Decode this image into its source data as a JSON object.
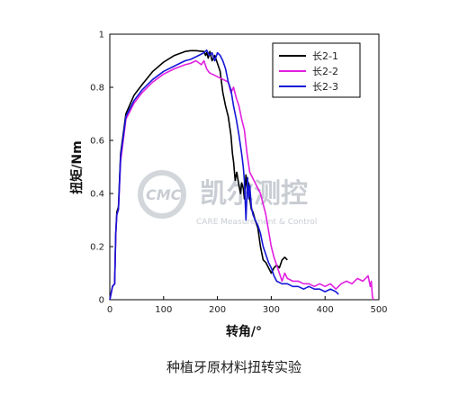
{
  "caption": "种植牙原材料扭转实验",
  "watermark": {
    "logo_text": "CMC",
    "brand_cn": "凯尔测控",
    "brand_en": "CARE Measurement & Control"
  },
  "chart_data": {
    "type": "line",
    "xlabel": "转角/°",
    "ylabel": "扭矩/Nm",
    "xlim": [
      0,
      500
    ],
    "ylim": [
      0,
      1
    ],
    "xticks": [
      0,
      100,
      200,
      300,
      400,
      500
    ],
    "xtick_labels": [
      "0",
      "100",
      "200",
      "300",
      "400",
      "500"
    ],
    "yticks": [
      0,
      0.2,
      0.4,
      0.6,
      0.8,
      1
    ],
    "ytick_labels": [
      "0",
      "0.2",
      "0.4",
      "0.6",
      "0.8",
      "1"
    ],
    "grid": false,
    "legend_position": "top-right",
    "series": [
      {
        "name": "长2-1",
        "color": "#000000",
        "x": [
          0,
          5,
          9,
          11,
          13,
          16,
          20,
          30,
          45,
          60,
          80,
          100,
          120,
          140,
          150,
          160,
          170,
          175,
          178,
          180,
          183,
          186,
          190,
          195,
          200,
          205,
          210,
          215,
          220,
          225,
          228,
          230,
          233,
          236,
          240,
          243,
          245,
          248,
          250,
          253,
          256,
          258,
          260,
          263,
          266,
          270,
          275,
          280,
          285,
          290,
          295,
          300,
          305,
          310,
          315,
          320,
          325,
          330
        ],
        "y": [
          0.0,
          0.05,
          0.06,
          0.25,
          0.33,
          0.35,
          0.55,
          0.7,
          0.77,
          0.81,
          0.86,
          0.895,
          0.92,
          0.935,
          0.938,
          0.938,
          0.936,
          0.935,
          0.92,
          0.93,
          0.91,
          0.935,
          0.9,
          0.92,
          0.89,
          0.86,
          0.78,
          0.73,
          0.69,
          0.62,
          0.55,
          0.52,
          0.45,
          0.48,
          0.43,
          0.4,
          0.44,
          0.42,
          0.38,
          0.47,
          0.4,
          0.44,
          0.38,
          0.34,
          0.33,
          0.3,
          0.27,
          0.2,
          0.15,
          0.14,
          0.12,
          0.1,
          0.12,
          0.13,
          0.12,
          0.15,
          0.16,
          0.15
        ]
      },
      {
        "name": "长2-2",
        "color": "#e21fe0",
        "x": [
          0,
          5,
          9,
          11,
          13,
          16,
          20,
          30,
          45,
          60,
          80,
          100,
          120,
          140,
          150,
          160,
          170,
          175,
          180,
          185,
          190,
          200,
          210,
          220,
          225,
          230,
          235,
          240,
          245,
          250,
          255,
          260,
          265,
          270,
          275,
          280,
          285,
          290,
          295,
          300,
          305,
          310,
          315,
          320,
          325,
          330,
          340,
          350,
          360,
          370,
          380,
          390,
          400,
          410,
          420,
          430,
          440,
          450,
          460,
          470,
          475,
          480,
          484,
          486,
          488,
          490
        ],
        "y": [
          0.0,
          0.05,
          0.06,
          0.24,
          0.32,
          0.34,
          0.52,
          0.68,
          0.74,
          0.78,
          0.82,
          0.85,
          0.87,
          0.885,
          0.89,
          0.9,
          0.885,
          0.9,
          0.87,
          0.855,
          0.85,
          0.84,
          0.83,
          0.82,
          0.78,
          0.8,
          0.76,
          0.73,
          0.68,
          0.64,
          0.55,
          0.48,
          0.46,
          0.44,
          0.42,
          0.4,
          0.36,
          0.32,
          0.26,
          0.2,
          0.16,
          0.13,
          0.1,
          0.07,
          0.1,
          0.08,
          0.07,
          0.07,
          0.06,
          0.06,
          0.05,
          0.06,
          0.05,
          0.06,
          0.04,
          0.06,
          0.07,
          0.06,
          0.08,
          0.07,
          0.08,
          0.09,
          0.05,
          0.07,
          0.01,
          0.0
        ]
      },
      {
        "name": "长2-3",
        "color": "#1515d8",
        "x": [
          0,
          5,
          9,
          11,
          13,
          16,
          20,
          30,
          45,
          60,
          80,
          100,
          120,
          140,
          150,
          160,
          170,
          175,
          180,
          185,
          190,
          195,
          200,
          205,
          210,
          215,
          220,
          225,
          230,
          235,
          240,
          245,
          248,
          250,
          253,
          256,
          258,
          260,
          263,
          266,
          270,
          275,
          280,
          285,
          290,
          295,
          300,
          305,
          310,
          320,
          330,
          340,
          350,
          360,
          370,
          380,
          390,
          400,
          410,
          420,
          425
        ],
        "y": [
          0.0,
          0.05,
          0.06,
          0.25,
          0.32,
          0.34,
          0.54,
          0.69,
          0.75,
          0.79,
          0.83,
          0.86,
          0.88,
          0.9,
          0.905,
          0.915,
          0.925,
          0.93,
          0.94,
          0.92,
          0.93,
          0.9,
          0.93,
          0.92,
          0.9,
          0.87,
          0.82,
          0.79,
          0.73,
          0.68,
          0.62,
          0.55,
          0.5,
          0.45,
          0.3,
          0.46,
          0.38,
          0.43,
          0.35,
          0.32,
          0.3,
          0.28,
          0.25,
          0.2,
          0.17,
          0.14,
          0.12,
          0.09,
          0.07,
          0.06,
          0.06,
          0.05,
          0.05,
          0.04,
          0.05,
          0.04,
          0.04,
          0.03,
          0.04,
          0.03,
          0.02
        ]
      }
    ]
  }
}
